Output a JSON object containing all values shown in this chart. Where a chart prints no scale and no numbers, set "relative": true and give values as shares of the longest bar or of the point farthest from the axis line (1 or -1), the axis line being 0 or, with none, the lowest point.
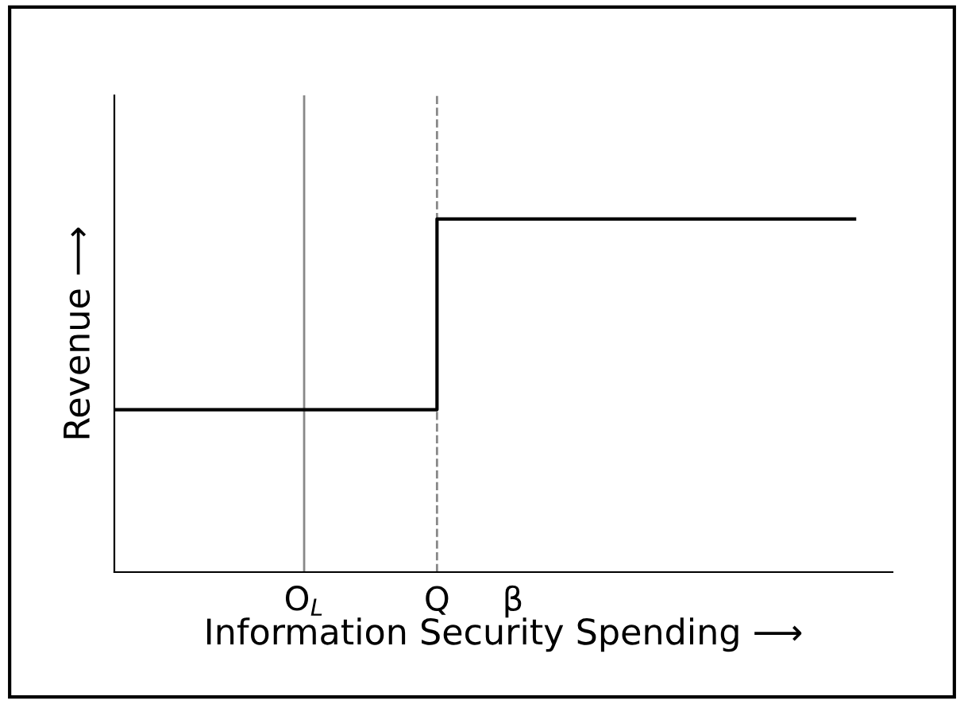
{
  "chart_data": {
    "type": "step",
    "relative": true,
    "xlabel": "Information Security Spending ⟶",
    "ylabel": "Revenue ⟶",
    "categories": [
      null,
      null,
      null,
      null,
      null,
      null,
      null,
      null,
      null,
      null,
      "O$_{L}$",
      null,
      null,
      null,
      null,
      null,
      null,
      "Q",
      null,
      null,
      null,
      "β",
      null,
      null,
      null,
      null,
      null,
      null,
      null,
      null,
      null,
      null,
      null,
      null,
      null,
      null,
      null,
      null,
      null,
      null,
      null,
      null
    ],
    "values": [
      0.46,
      0.46,
      0.46,
      0.46,
      0.46,
      0.46,
      0.46,
      0.46,
      0.46,
      0.46,
      0.46,
      0.46,
      0.46,
      0.46,
      0.46,
      0.46,
      0.46,
      1,
      1,
      1,
      1,
      1,
      1,
      1,
      1,
      1,
      1,
      1,
      1,
      1,
      1,
      1,
      1,
      1,
      1,
      1,
      1,
      1,
      1,
      1,
      null,
      null
    ],
    "color": "#000000",
    "tick_labels": "x",
    "ref_lines": [
      {
        "axis": "x",
        "value": "O$_{L}$",
        "label": null,
        "color": "#888888",
        "line_style": "solid"
      },
      {
        "axis": "x",
        "value": "Q",
        "label": null,
        "color": "#888888",
        "line_style": "dashed"
      }
    ],
    "line_style": "solid"
  }
}
